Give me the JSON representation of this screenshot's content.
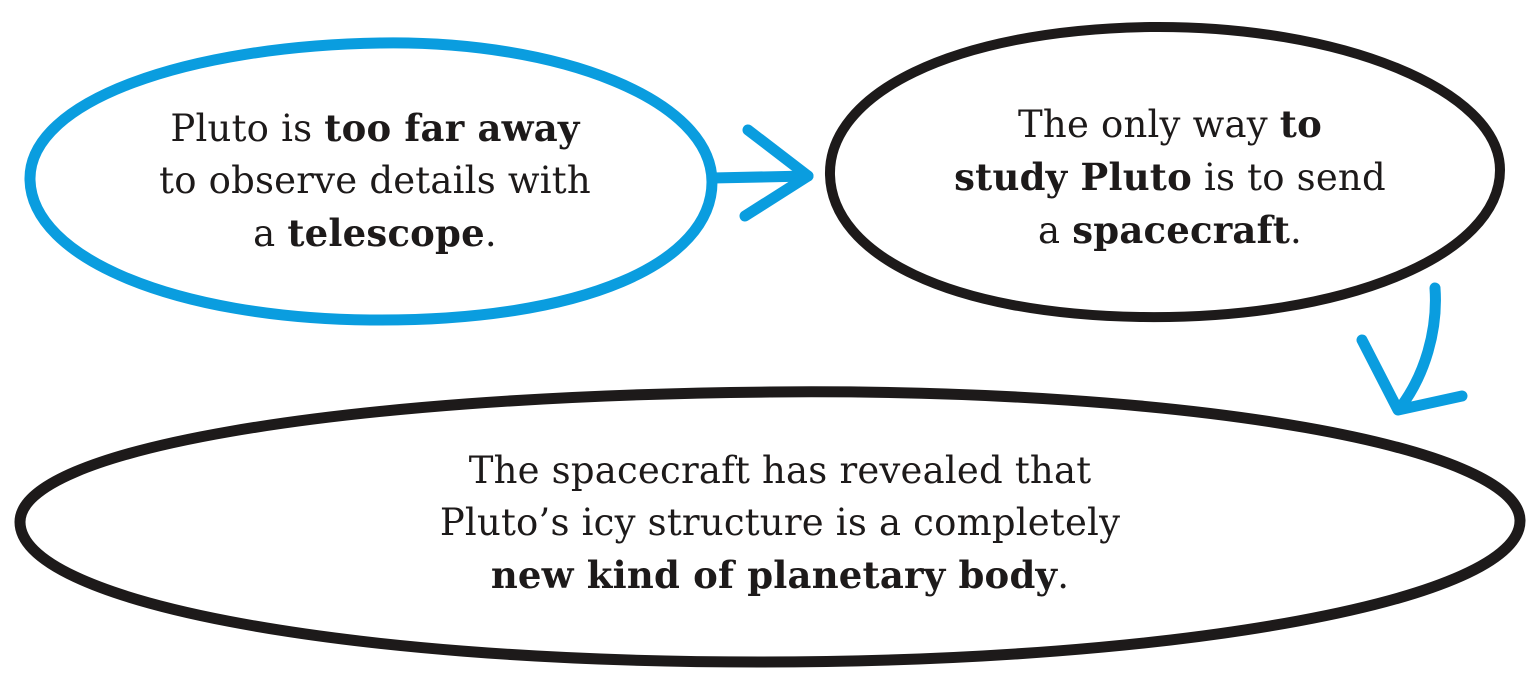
{
  "colors": {
    "blue": "#0a9ddf",
    "black": "#1d1a1a"
  },
  "nodes": [
    {
      "id": "too-far",
      "outline": "blue",
      "lines": [
        [
          {
            "t": "Pluto is "
          },
          {
            "t": "too far away",
            "b": true
          }
        ],
        [
          {
            "t": "to observe details with"
          }
        ],
        [
          {
            "t": "a "
          },
          {
            "t": "telescope",
            "b": true
          },
          {
            "t": "."
          }
        ]
      ]
    },
    {
      "id": "send-spacecraft",
      "outline": "black",
      "lines": [
        [
          {
            "t": "The only way "
          },
          {
            "t": "to",
            "b": true
          }
        ],
        [
          {
            "t": "study Pluto",
            "b": true
          },
          {
            "t": " is to send"
          }
        ],
        [
          {
            "t": "a "
          },
          {
            "t": "spacecraft",
            "b": true
          },
          {
            "t": "."
          }
        ]
      ]
    },
    {
      "id": "new-kind",
      "outline": "black",
      "lines": [
        [
          {
            "t": "The spacecraft has revealed that"
          }
        ],
        [
          {
            "t": "Pluto’s icy structure is a completely"
          }
        ],
        [
          {
            "t": "new kind of planetary body",
            "b": true
          },
          {
            "t": "."
          }
        ]
      ]
    }
  ],
  "edges": [
    {
      "from": "too-far",
      "to": "send-spacecraft",
      "color": "blue"
    },
    {
      "from": "send-spacecraft",
      "to": "new-kind",
      "color": "blue"
    }
  ]
}
